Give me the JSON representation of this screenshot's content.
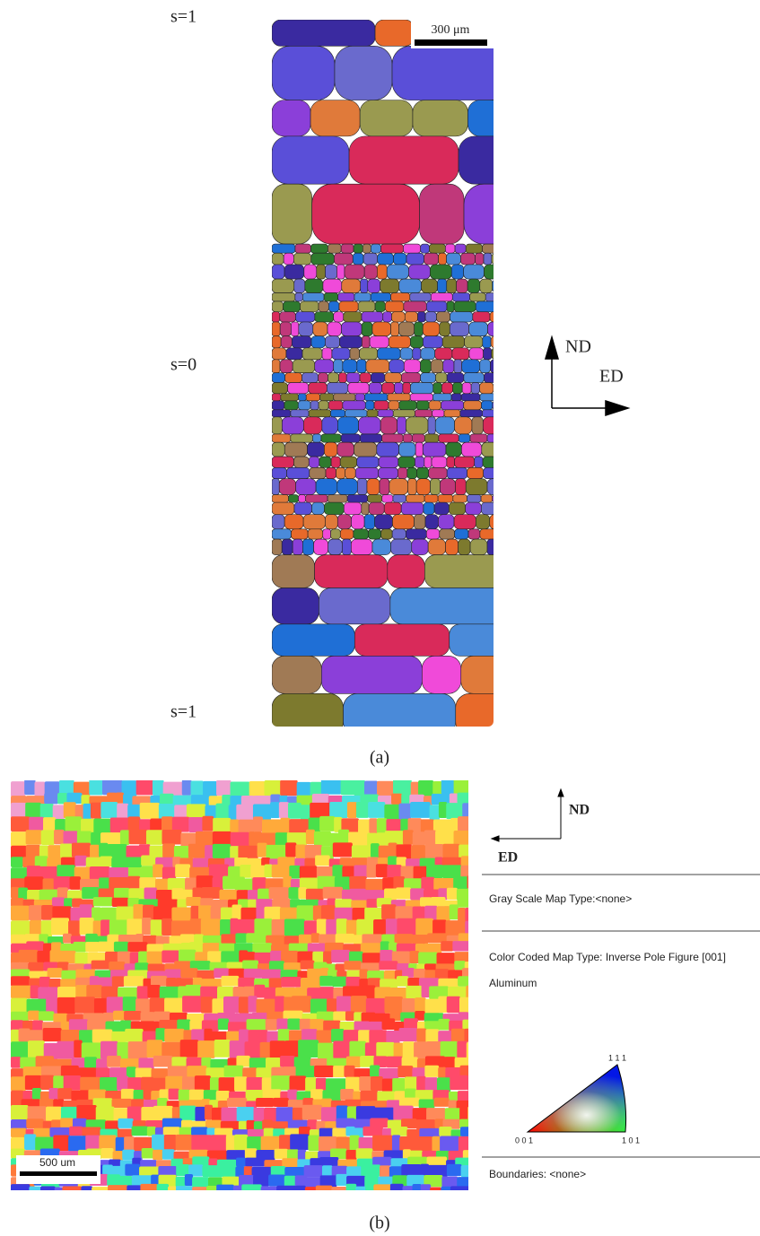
{
  "panel_a": {
    "labels": [
      "s=1",
      "s=0",
      "s=1"
    ],
    "scale_bar": "300 μm",
    "axis_vertical": "ND",
    "axis_horizontal": "ED",
    "caption": "(a)"
  },
  "panel_b": {
    "scale_bar": "500 um",
    "axis_vertical": "ND",
    "axis_horizontal": "ED",
    "caption": "(b)",
    "legend": {
      "gray_scale": "Gray Scale Map Type:<none>",
      "color_coded": "Color Coded Map Type: Inverse Pole Figure [001]",
      "material": "Aluminum",
      "triangle_labels": [
        "1 1 1",
        "0 0 1",
        "1 0 1"
      ],
      "boundaries": "Boundaries: <none>"
    }
  }
}
